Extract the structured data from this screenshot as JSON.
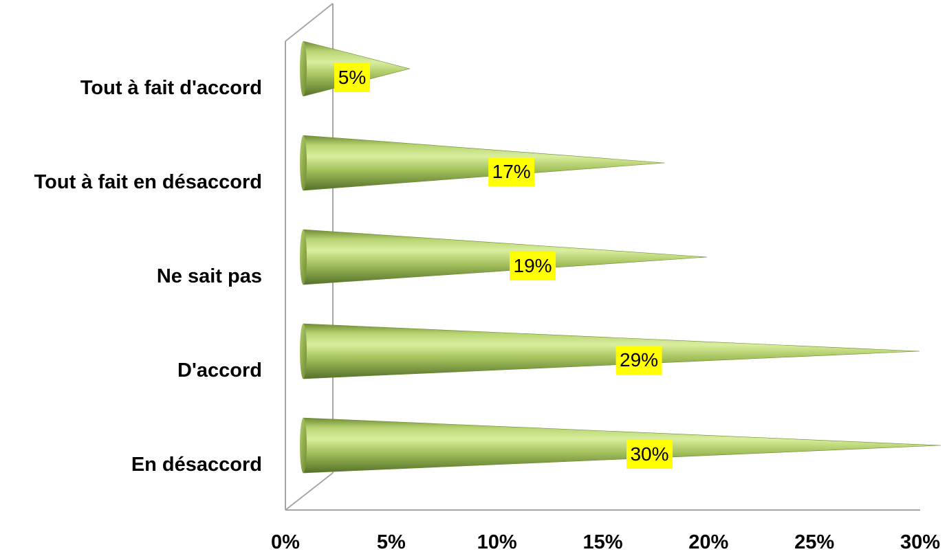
{
  "chart_data": {
    "type": "bar",
    "orientation": "horizontal",
    "bar_shape": "cone",
    "categories": [
      "Tout à fait d'accord",
      "Tout à fait en désaccord",
      "Ne sait pas",
      "D'accord",
      "En désaccord"
    ],
    "values": [
      5,
      17,
      19,
      29,
      30
    ],
    "data_labels": [
      "5%",
      "17%",
      "19%",
      "29%",
      "30%"
    ],
    "x_ticks": [
      "0%",
      "5%",
      "10%",
      "15%",
      "20%",
      "25%",
      "30%"
    ],
    "xlim": [
      0,
      30
    ],
    "title": "",
    "xlabel": "",
    "ylabel": "",
    "grid": false,
    "legend": "none",
    "colors": {
      "cone_light": "#d7ec9a",
      "cone_mid": "#9bbb59",
      "cone_dark": "#5f7a2c",
      "label_background": "#ffff00",
      "axis": "#a6a6a6"
    }
  }
}
